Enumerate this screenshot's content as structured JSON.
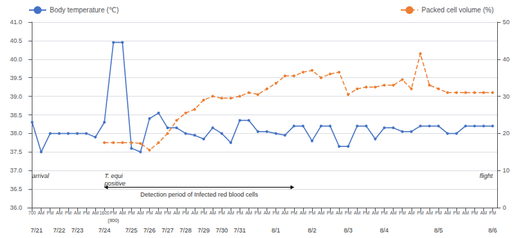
{
  "chart_data": {
    "type": "line",
    "categories": [
      "700",
      "AM",
      "PM",
      "AM",
      "PM",
      "AM",
      "PM",
      "AM",
      "1600",
      "PM",
      "AM",
      "PM",
      "AM",
      "PM",
      "AM",
      "PM",
      "AM",
      "PM",
      "AM",
      "PM",
      "AM",
      "PM",
      "AM",
      "PM",
      "AM",
      "PM",
      "AM",
      "PM",
      "AM",
      "PM",
      "AM",
      "PM",
      "AM",
      "PM",
      "AM",
      "PM",
      "AM",
      "PM",
      "AM",
      "PM",
      "AM",
      "PM",
      "AM",
      "PM",
      "AM",
      "PM",
      "AM",
      "PM",
      "AM",
      "PM",
      "AM",
      "PM"
    ],
    "series": [
      {
        "name": "Body temperature (℃)",
        "color": "#4472C4",
        "marker": "circle",
        "line_style": "solid",
        "values": [
          38.3,
          37.5,
          38.0,
          38.0,
          38.0,
          38.0,
          38.0,
          37.9,
          38.3,
          40.45,
          40.45,
          37.6,
          37.5,
          38.4,
          38.55,
          38.15,
          38.15,
          38.0,
          37.95,
          37.85,
          38.15,
          38.0,
          37.75,
          38.35,
          38.35,
          38.05,
          38.05,
          38.0,
          37.95,
          38.2,
          38.2,
          37.8,
          38.2,
          38.2,
          37.65,
          37.65,
          38.2,
          38.2,
          37.85,
          38.15,
          38.15,
          38.05,
          38.05,
          38.2,
          38.2,
          38.2,
          38.0,
          38.0,
          38.2,
          38.2,
          38.2,
          38.2
        ]
      },
      {
        "name": "Packed cell volume (%)",
        "color": "#ED7D31",
        "marker": "circle",
        "line_style": "dashed",
        "axis": "y2",
        "values": [
          null,
          null,
          null,
          null,
          null,
          null,
          null,
          null,
          17.5,
          17.5,
          17.5,
          17.5,
          17.3,
          15.5,
          17.5,
          20.0,
          23.5,
          25.5,
          26.5,
          29.0,
          30.0,
          29.5,
          29.5,
          30.0,
          31.0,
          30.5,
          32.0,
          33.5,
          35.5,
          35.5,
          36.5,
          37.0,
          35.0,
          36.0,
          36.5,
          30.5,
          32.0,
          32.5,
          32.5,
          33.0,
          33.0,
          34.5,
          32.0,
          41.5,
          33.0,
          32.0,
          31.0,
          31.0,
          31.0,
          31.0,
          31.0,
          31.0
        ]
      }
    ],
    "ylim": [
      36,
      41
    ],
    "yticks": [
      {
        "value": 36,
        "label": "36.0"
      },
      36.5,
      {
        "value": 37,
        "label": "37.0"
      },
      37.5,
      {
        "value": 38,
        "label": "38.0"
      },
      38.5,
      {
        "value": 39,
        "label": "39.0"
      },
      39.5,
      {
        "value": 40,
        "label": "40.0"
      },
      40.5,
      {
        "value": 41,
        "label": "41.0"
      }
    ],
    "y2lim": [
      0,
      50
    ],
    "y2ticks": [
      0,
      10,
      20,
      30,
      40,
      50
    ],
    "grid": true,
    "legend": "top",
    "date_labels": [
      {
        "text": "7/21",
        "x": 0.5
      },
      {
        "text": "7/22",
        "x": 3
      },
      {
        "text": "7/23",
        "x": 5
      },
      {
        "text": "7/24",
        "x": 8
      },
      {
        "text": "7/25",
        "x": 11
      },
      {
        "text": "7/26",
        "x": 13
      },
      {
        "text": "7/27",
        "x": 15
      },
      {
        "text": "7/28",
        "x": 17
      },
      {
        "text": "7/29",
        "x": 19
      },
      {
        "text": "7/30",
        "x": 21
      },
      {
        "text": "7/31",
        "x": 23
      },
      {
        "text": "8/1",
        "x": 27
      },
      {
        "text": "8/2",
        "x": 31
      },
      {
        "text": "8/3",
        "x": 35
      },
      {
        "text": "8/4",
        "x": 39
      },
      {
        "text": "8/5",
        "x": 45
      },
      {
        "text": "8/6",
        "x": 51
      }
    ],
    "x_sublabels": [
      {
        "text": "(900)",
        "x": 9
      }
    ],
    "annotations": [
      {
        "text": "arrival",
        "x": 0,
        "y": 37.0,
        "align": "left"
      },
      {
        "text": "T. equi\npositive",
        "x": 8,
        "y": 37.0,
        "align": "left"
      },
      {
        "text": "flight",
        "x": 51,
        "y": 37.0,
        "align": "right"
      }
    ],
    "arrow": {
      "text": "Detection period of Infected red blood cells",
      "x_start": 8,
      "x_end": 29,
      "y": 36.55
    }
  }
}
